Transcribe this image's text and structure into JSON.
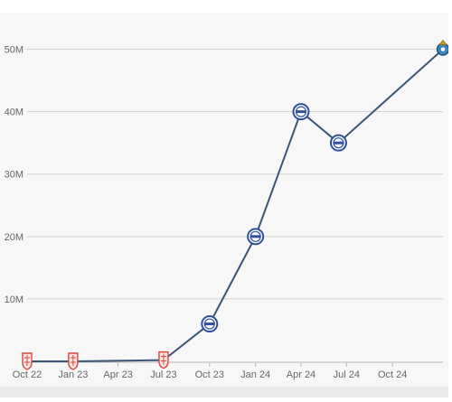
{
  "chart_data": {
    "type": "line",
    "title": "",
    "xlabel": "",
    "ylabel": "",
    "x_ticks": [
      "Oct 22",
      "Jan 23",
      "Apr 23",
      "Jul 23",
      "Oct 23",
      "Jan 24",
      "Apr 24",
      "Jul 24",
      "Oct 24"
    ],
    "y_ticks": [
      "10M",
      "20M",
      "30M",
      "40M",
      "50M"
    ],
    "ylim": [
      0,
      55000000
    ],
    "xlim": [
      "2022-10-01",
      "2025-01-10"
    ],
    "grid": "horizontal",
    "legend": "none",
    "series": [
      {
        "color": "#3a5578",
        "points": [
          {
            "x": "2022-10-01",
            "y": 0,
            "marker": "red-club-crest"
          },
          {
            "x": "2023-01-01",
            "y": 0,
            "marker": "red-club-crest"
          },
          {
            "x": "2023-07-01",
            "y": 200000,
            "marker": "red-club-crest"
          },
          {
            "x": "2023-10-01",
            "y": 6000000,
            "marker": "blue-club-crest"
          },
          {
            "x": "2024-01-01",
            "y": 20000000,
            "marker": "blue-club-crest"
          },
          {
            "x": "2024-04-01",
            "y": 40000000,
            "marker": "blue-club-crest"
          },
          {
            "x": "2024-06-15",
            "y": 35000000,
            "marker": "blue-club-crest"
          },
          {
            "x": "2025-01-10",
            "y": 50000000,
            "marker": "blue-gold-club-crest"
          }
        ]
      }
    ]
  },
  "colors": {
    "line": "#3a5578",
    "grid": "#d2d2d2",
    "axis": "#b5b5b5",
    "red_crest": "#d9473e",
    "blue_crest": "#2e4f9c",
    "gold_crest": "#c99a2e"
  }
}
